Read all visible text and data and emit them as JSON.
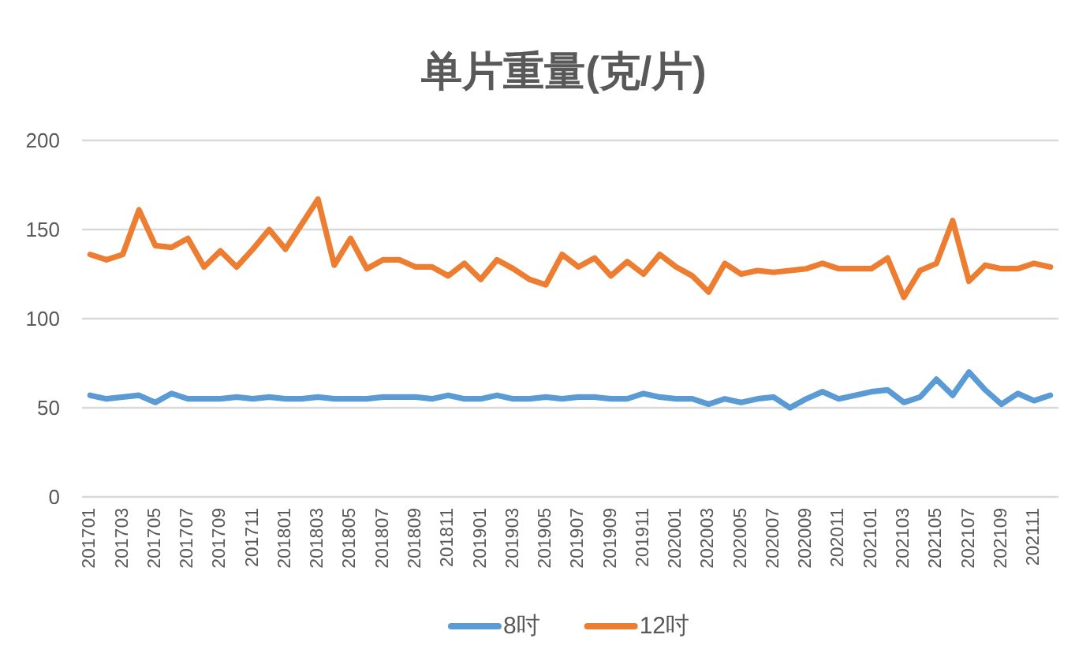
{
  "chart_data": {
    "type": "line",
    "title": "单片重量(克/片)",
    "categories": [
      "201701",
      null,
      "201703",
      null,
      "201705",
      null,
      "201707",
      null,
      "201709",
      null,
      "201711",
      null,
      "201801",
      null,
      "201803",
      null,
      "201805",
      null,
      "201807",
      null,
      "201809",
      null,
      "201811",
      null,
      "201901",
      null,
      "201903",
      null,
      "201905",
      null,
      "201907",
      null,
      "201909",
      null,
      "201911",
      null,
      "202001",
      null,
      "202003",
      null,
      "202005",
      null,
      "202007",
      null,
      "202009",
      null,
      "202011",
      null,
      "202101",
      null,
      "202103",
      null,
      "202105",
      null,
      "202107",
      null,
      "202109",
      null,
      "202111",
      null
    ],
    "series": [
      {
        "name": "8吋",
        "color": "#5b9bd5",
        "values": [
          57,
          55,
          56,
          57,
          53,
          58,
          55,
          55,
          55,
          56,
          55,
          56,
          55,
          55,
          56,
          55,
          55,
          55,
          56,
          56,
          56,
          55,
          57,
          55,
          55,
          57,
          55,
          55,
          56,
          55,
          56,
          56,
          55,
          55,
          58,
          56,
          55,
          55,
          52,
          55,
          53,
          55,
          56,
          50,
          55,
          59,
          55,
          57,
          59,
          60,
          53,
          56,
          66,
          57,
          70,
          60,
          52,
          58,
          54,
          57
        ]
      },
      {
        "name": "12吋",
        "color": "#ed7d31",
        "values": [
          136,
          133,
          136,
          161,
          141,
          140,
          145,
          129,
          138,
          129,
          139,
          150,
          139,
          153,
          167,
          130,
          145,
          128,
          133,
          133,
          129,
          129,
          124,
          131,
          122,
          133,
          128,
          122,
          119,
          136,
          129,
          134,
          124,
          132,
          125,
          136,
          129,
          124,
          115,
          131,
          125,
          127,
          126,
          127,
          128,
          131,
          128,
          128,
          128,
          134,
          112,
          127,
          131,
          155,
          121,
          130,
          128,
          128,
          131,
          129
        ]
      }
    ],
    "ylim": [
      0,
      200
    ],
    "yticks": [
      0,
      50,
      100,
      150,
      200
    ],
    "grid": "y",
    "legend": "bottom"
  }
}
